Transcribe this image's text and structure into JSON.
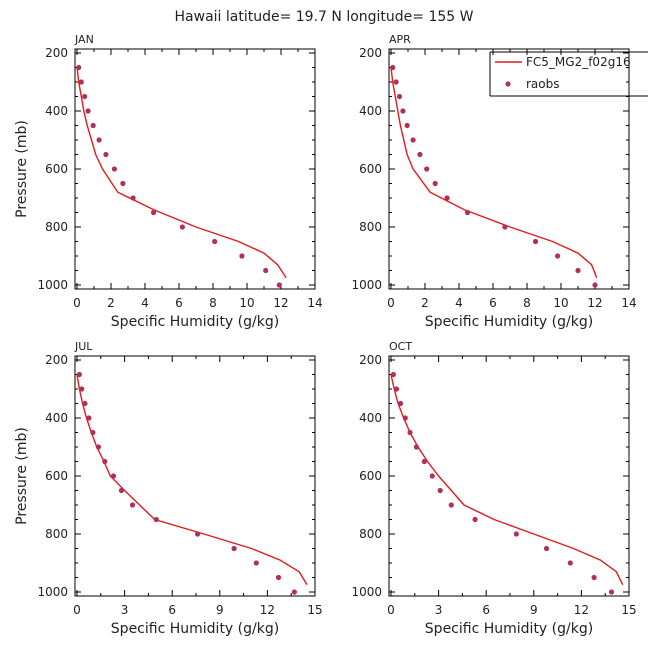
{
  "figure": {
    "title": "Hawaii  latitude= 19.7 N longitude= 155 W",
    "line_color": "#e31a1c",
    "marker_color": "#b0305a",
    "legend": {
      "line_label": "FC5_MG2_f02g16",
      "marker_label": "raobs",
      "placement": "top-right of APR panel"
    }
  },
  "chart_data": [
    {
      "type": "line",
      "month": "JAN",
      "xlabel": "Specific Humidity (g/kg)",
      "ylabel": "Pressure (mb)",
      "xlim": [
        0,
        14
      ],
      "ylim": [
        1000,
        200
      ],
      "xticks": [
        0,
        2,
        4,
        6,
        8,
        10,
        12,
        14
      ],
      "yticks": [
        200,
        400,
        600,
        800,
        1000
      ],
      "series": [
        {
          "name": "FC5_MG2_f02g16",
          "kind": "line",
          "x": [
            0.0,
            0.1,
            0.25,
            0.4,
            0.6,
            0.85,
            1.1,
            1.5,
            2.4,
            4.5,
            7.0,
            9.5,
            11.0,
            11.8,
            12.3
          ],
          "y": [
            250,
            300,
            350,
            400,
            450,
            500,
            550,
            600,
            680,
            740,
            800,
            850,
            890,
            930,
            975
          ]
        },
        {
          "name": "raobs",
          "kind": "scatter",
          "x": [
            0.1,
            0.25,
            0.45,
            0.65,
            0.95,
            1.3,
            1.7,
            2.2,
            2.7,
            3.3,
            4.5,
            6.2,
            8.1,
            9.7,
            11.1,
            11.9
          ],
          "y": [
            250,
            300,
            350,
            400,
            450,
            500,
            550,
            600,
            650,
            700,
            750,
            800,
            850,
            900,
            950,
            1000
          ]
        }
      ]
    },
    {
      "type": "line",
      "month": "APR",
      "xlabel": "Specific Humidity (g/kg)",
      "ylabel": "",
      "xlim": [
        0,
        14
      ],
      "ylim": [
        1000,
        200
      ],
      "xticks": [
        0,
        2,
        4,
        6,
        8,
        10,
        12,
        14
      ],
      "yticks": [
        200,
        400,
        600,
        800,
        1000
      ],
      "series": [
        {
          "name": "FC5_MG2_f02g16",
          "kind": "line",
          "x": [
            0.0,
            0.1,
            0.25,
            0.4,
            0.55,
            0.75,
            0.95,
            1.3,
            2.3,
            4.3,
            7.0,
            9.5,
            11.0,
            11.8,
            12.1
          ],
          "y": [
            250,
            300,
            350,
            400,
            450,
            500,
            550,
            600,
            680,
            740,
            800,
            850,
            890,
            930,
            975
          ]
        },
        {
          "name": "raobs",
          "kind": "scatter",
          "x": [
            0.1,
            0.3,
            0.5,
            0.7,
            0.95,
            1.3,
            1.7,
            2.1,
            2.6,
            3.3,
            4.5,
            6.7,
            8.5,
            9.8,
            11.0,
            12.0
          ],
          "y": [
            250,
            300,
            350,
            400,
            450,
            500,
            550,
            600,
            650,
            700,
            750,
            800,
            850,
            900,
            950,
            1000
          ]
        }
      ]
    },
    {
      "type": "line",
      "month": "JUL",
      "xlabel": "Specific Humidity (g/kg)",
      "ylabel": "Pressure (mb)",
      "xlim": [
        0,
        15
      ],
      "ylim": [
        1000,
        200
      ],
      "xticks": [
        0,
        3,
        6,
        9,
        12,
        15
      ],
      "yticks": [
        200,
        400,
        600,
        800,
        1000
      ],
      "series": [
        {
          "name": "FC5_MG2_f02g16",
          "kind": "line",
          "x": [
            0.0,
            0.15,
            0.35,
            0.6,
            0.9,
            1.25,
            1.7,
            2.1,
            3.0,
            4.9,
            8.0,
            11.0,
            12.8,
            14.0,
            14.5
          ],
          "y": [
            250,
            300,
            350,
            400,
            450,
            500,
            550,
            600,
            650,
            750,
            800,
            850,
            890,
            930,
            975
          ]
        },
        {
          "name": "raobs",
          "kind": "scatter",
          "x": [
            0.15,
            0.3,
            0.5,
            0.75,
            1.0,
            1.35,
            1.75,
            2.3,
            2.8,
            3.5,
            5.0,
            7.6,
            9.9,
            11.3,
            12.7,
            13.7
          ],
          "y": [
            250,
            300,
            350,
            400,
            450,
            500,
            550,
            600,
            650,
            700,
            750,
            800,
            850,
            900,
            950,
            1000
          ]
        }
      ]
    },
    {
      "type": "line",
      "month": "OCT",
      "xlabel": "Specific Humidity (g/kg)",
      "ylabel": "",
      "xlim": [
        0,
        15
      ],
      "ylim": [
        1000,
        200
      ],
      "xticks": [
        0,
        3,
        6,
        9,
        12,
        15
      ],
      "yticks": [
        200,
        400,
        600,
        800,
        1000
      ],
      "series": [
        {
          "name": "FC5_MG2_f02g16",
          "kind": "line",
          "x": [
            0.0,
            0.2,
            0.45,
            0.8,
            1.2,
            1.7,
            2.3,
            3.0,
            3.8,
            4.6,
            6.5,
            9.0,
            11.5,
            13.2,
            14.2,
            14.6
          ],
          "y": [
            250,
            300,
            350,
            400,
            450,
            500,
            550,
            600,
            650,
            700,
            750,
            800,
            850,
            890,
            930,
            975
          ]
        },
        {
          "name": "raobs",
          "kind": "scatter",
          "x": [
            0.15,
            0.35,
            0.6,
            0.9,
            1.2,
            1.6,
            2.1,
            2.6,
            3.1,
            3.8,
            5.3,
            7.9,
            9.8,
            11.3,
            12.8,
            13.9
          ],
          "y": [
            250,
            300,
            350,
            400,
            450,
            500,
            550,
            600,
            650,
            700,
            750,
            800,
            850,
            900,
            950,
            1000
          ]
        }
      ]
    }
  ]
}
